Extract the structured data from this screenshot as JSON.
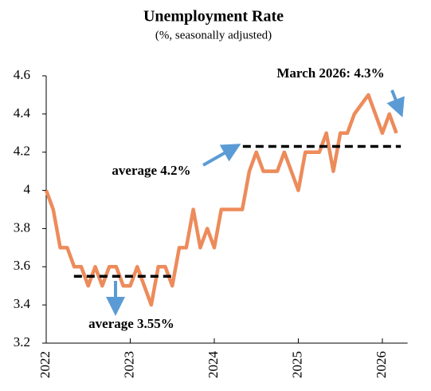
{
  "chart_data": {
    "type": "line",
    "title": "Unemployment Rate",
    "subtitle": "(%, seasonally adjusted)",
    "x": [
      2022,
      2022.0833,
      2022.1667,
      2022.25,
      2022.3333,
      2022.4167,
      2022.5,
      2022.5833,
      2022.6667,
      2022.75,
      2022.8333,
      2022.9167,
      2023,
      2023.0833,
      2023.1667,
      2023.25,
      2023.3333,
      2023.4167,
      2023.5,
      2023.5833,
      2023.6667,
      2023.75,
      2023.8333,
      2023.9167,
      2024,
      2024.0833,
      2024.1667,
      2024.25,
      2024.3333,
      2024.4167,
      2024.5,
      2024.5833,
      2024.6667,
      2024.75,
      2024.8333,
      2024.9167,
      2025,
      2025.0833,
      2025.1667,
      2025.25,
      2025.3333,
      2025.4167,
      2025.5,
      2025.5833,
      2025.6667,
      2025.75,
      2025.8333,
      2025.9167,
      2026,
      2026.0833,
      2026.1667
    ],
    "values": [
      4.0,
      3.9,
      3.7,
      3.7,
      3.6,
      3.6,
      3.5,
      3.6,
      3.5,
      3.6,
      3.6,
      3.5,
      3.5,
      3.6,
      3.5,
      3.4,
      3.6,
      3.6,
      3.5,
      3.7,
      3.7,
      3.9,
      3.7,
      3.8,
      3.7,
      3.9,
      3.9,
      3.9,
      3.9,
      4.1,
      4.2,
      4.1,
      4.1,
      4.1,
      4.2,
      4.1,
      4.0,
      4.2,
      4.2,
      4.2,
      4.3,
      4.1,
      4.3,
      4.3,
      4.4,
      4.45,
      4.5,
      4.4,
      4.3,
      4.4,
      4.3
    ],
    "color": "#ed8b5b",
    "xlim": [
      2022,
      2026.3
    ],
    "xticks": [
      2022,
      2023,
      2024,
      2025,
      2026
    ],
    "ylim": [
      3.2,
      4.6
    ],
    "yticks": [
      {
        "value": 3.2,
        "label": "3.2"
      },
      {
        "value": 3.4,
        "label": "3.4"
      },
      {
        "value": 3.6,
        "label": "3.6"
      },
      {
        "value": 3.8,
        "label": "3.8"
      },
      {
        "value": 4,
        "label": "4"
      },
      {
        "value": 4.2,
        "label": "4.2"
      },
      {
        "value": 4.4,
        "label": "4.4"
      },
      {
        "value": 4.6,
        "label": "4.6"
      }
    ],
    "reference_lines": [
      {
        "value": 3.55,
        "x": [
          2022.33,
          2023.54
        ],
        "label": "average 3.55%"
      },
      {
        "value": 4.23,
        "x": [
          2024.34,
          2026.22
        ],
        "label": "average 4.2%"
      }
    ],
    "annotation": "March 2026: 4.3%"
  }
}
